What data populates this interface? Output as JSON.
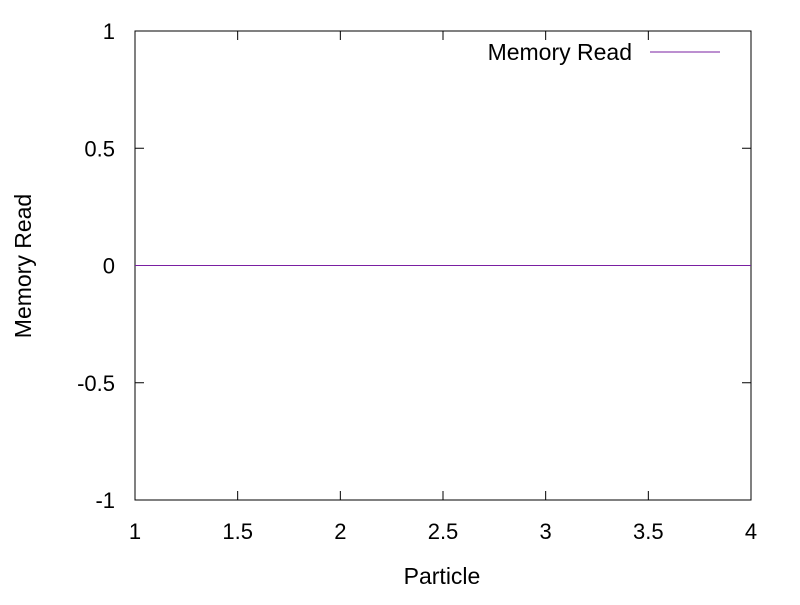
{
  "chart_data": {
    "type": "line",
    "title": "",
    "xlabel": "Particle",
    "ylabel": "Memory Read",
    "xlim": [
      1,
      4
    ],
    "ylim": [
      -1,
      1
    ],
    "x_ticks": [
      "1",
      "1.5",
      "2",
      "2.5",
      "3",
      "3.5",
      "4"
    ],
    "y_ticks": [
      "1",
      "0.5",
      "0",
      "-0.5",
      "-1"
    ],
    "grid": false,
    "legend_position": "top-right",
    "series": [
      {
        "name": "Memory Read",
        "color": "#7a1fa2",
        "x": [
          1,
          2,
          3,
          4
        ],
        "y": [
          0,
          0,
          0,
          0
        ]
      }
    ]
  }
}
